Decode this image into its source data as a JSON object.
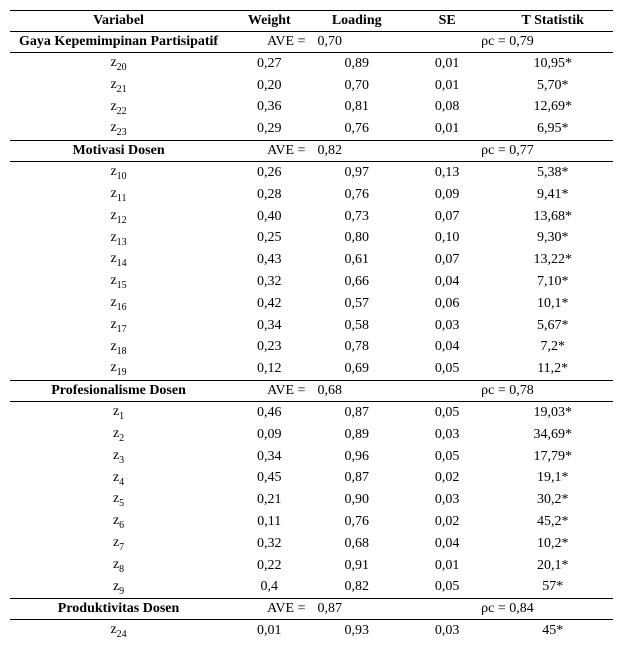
{
  "headers": {
    "variabel": "Variabel",
    "weight": "Weight",
    "loading": "Loading",
    "se": "SE",
    "tstat": "T Statistik"
  },
  "sections": [
    {
      "label": "Gaya Kepemimpinan Partisipatif",
      "ave_label": "AVE =",
      "ave_value": "0,70",
      "rho_label": "ρc = 0,79",
      "rows": [
        {
          "var_html": "z<sub class='sub'>20</sub>",
          "w": "0,27",
          "l": "0,89",
          "se": "0,01",
          "t": "10,95*"
        },
        {
          "var_html": "z<sub class='sub'>21</sub>",
          "w": "0,20",
          "l": "0,70",
          "se": "0,01",
          "t": "5,70*"
        },
        {
          "var_html": "z<sub class='sub'>22</sub>",
          "w": "0,36",
          "l": "0,81",
          "se": "0,08",
          "t": "12,69*"
        },
        {
          "var_html": "z<sub class='sub'>23</sub>",
          "w": "0,29",
          "l": "0,76",
          "se": "0,01",
          "t": "6,95*"
        }
      ]
    },
    {
      "label": "Motivasi Dosen",
      "ave_label": "AVE =",
      "ave_value": "0,82",
      "rho_label": "ρc = 0,77",
      "rows": [
        {
          "var_html": "z<sub class='sub'>10</sub>",
          "w": "0,26",
          "l": "0,97",
          "se": "0,13",
          "t": "5,38*"
        },
        {
          "var_html": "z<sub class='sub'>11</sub>",
          "w": "0,28",
          "l": "0,76",
          "se": "0,09",
          "t": "9,41*"
        },
        {
          "var_html": "z<sub class='sub'>12</sub>",
          "w": "0,40",
          "l": "0,73",
          "se": "0,07",
          "t": "13,68*"
        },
        {
          "var_html": "z<sub class='sub'>13</sub>",
          "w": "0,25",
          "l": "0,80",
          "se": "0,10",
          "t": "9,30*"
        },
        {
          "var_html": "z<sub class='sub'>14</sub>",
          "w": "0,43",
          "l": "0,61",
          "se": "0,07",
          "t": "13,22*"
        },
        {
          "var_html": "z<sub class='sub'>15</sub>",
          "w": "0,32",
          "l": "0,66",
          "se": "0,04",
          "t": "7,10*"
        },
        {
          "var_html": "z<sub class='sub'>16</sub>",
          "w": "0,42",
          "l": "0,57",
          "se": "0,06",
          "t": "10,1*"
        },
        {
          "var_html": "z<sub class='sub'>17</sub>",
          "w": "0,34",
          "l": "0,58",
          "se": "0,03",
          "t": "5,67*"
        },
        {
          "var_html": "z<sub class='sub'>18</sub>",
          "w": "0,23",
          "l": "0,78",
          "se": "0,04",
          "t": "7,2*"
        },
        {
          "var_html": "z<sub class='sub'>19</sub>",
          "w": "0,12",
          "l": "0,69",
          "se": "0,05",
          "t": "11,2*"
        }
      ]
    },
    {
      "label": "Profesionalisme Dosen",
      "ave_label": "AVE =",
      "ave_value": "0,68",
      "rho_label": "ρc = 0,78",
      "rows": [
        {
          "var_html": "z<sub class='sub'>1</sub>",
          "w": "0,46",
          "l": "0,87",
          "se": "0,05",
          "t": "19,03*"
        },
        {
          "var_html": "z<sub class='sub'>2</sub>",
          "w": "0,09",
          "l": "0,89",
          "se": "0,03",
          "t": "34,69*"
        },
        {
          "var_html": "z<sub class='sub'>3</sub>",
          "w": "0,34",
          "l": "0,96",
          "se": "0,05",
          "t": "17,79*"
        },
        {
          "var_html": "z<sub class='sub'>4</sub>",
          "w": "0,45",
          "l": "0,87",
          "se": "0,02",
          "t": "19,1*"
        },
        {
          "var_html": "z<sub class='sub'>5</sub>",
          "w": "0,21",
          "l": "0,90",
          "se": "0,03",
          "t": "30,2*"
        },
        {
          "var_html": "z<sub class='sub'>6</sub>",
          "w": "0,11",
          "l": "0,76",
          "se": "0,02",
          "t": "45,2*"
        },
        {
          "var_html": "z<sub class='sub'>7</sub>",
          "w": "0,32",
          "l": "0,68",
          "se": "0,04",
          "t": "10,2*"
        },
        {
          "var_html": "z<sub class='sub'>8</sub>",
          "w": "0,22",
          "l": "0,91",
          "se": "0,01",
          "t": "20,1*"
        },
        {
          "var_html": "z<sub class='sub'>9</sub>",
          "w": "0,4",
          "l": "0,82",
          "se": "0,05",
          "t": "57*"
        }
      ]
    },
    {
      "label": "Produktivitas Dosen",
      "ave_label": "AVE =",
      "ave_value": "0,87",
      "rho_label": "ρc = 0,84",
      "rows": [
        {
          "var_html": "z<sub class='sub'>24</sub>",
          "w": "0,01",
          "l": "0,93",
          "se": "0,03",
          "t": "45*"
        }
      ]
    }
  ]
}
